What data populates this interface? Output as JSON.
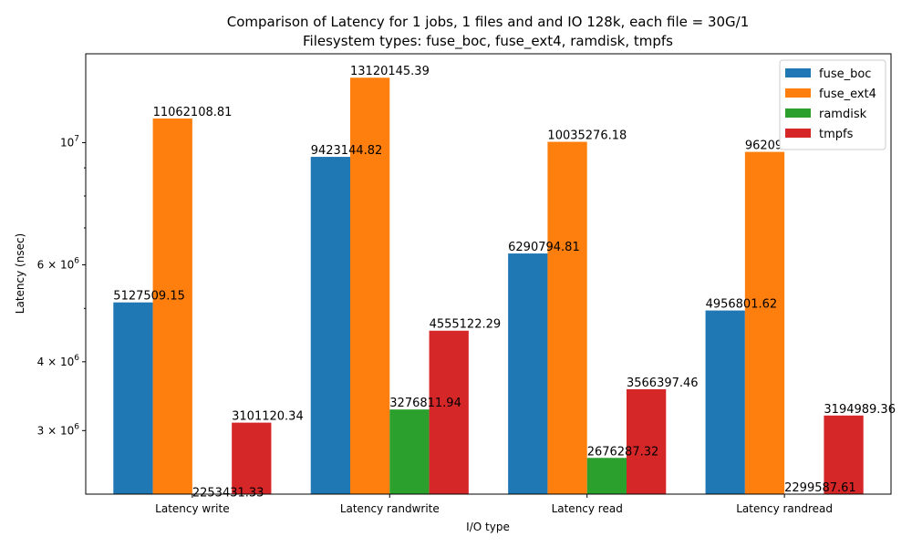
{
  "chart_data": {
    "type": "bar",
    "title": "Comparison of Latency for 1 jobs, 1 files and  and IO 128k, each file = 30G/1",
    "subtitle": "Filesystem types: fuse_boc, fuse_ext4, ramdisk, tmpfs",
    "xlabel": "I/O type",
    "ylabel": "Latency (nsec)",
    "yscale": "log",
    "ylim": [
      2300000,
      14500000
    ],
    "grid": false,
    "legend_position": "top-right",
    "categories": [
      "Latency write",
      "Latency randwrite",
      "Latency read",
      "Latency randread"
    ],
    "series": [
      {
        "name": "fuse_boc",
        "color": "#1f77b4",
        "values": [
          5127509.15,
          9423144.82,
          6290794.81,
          4956801.62
        ],
        "labels": [
          "5127509.15",
          "9423144.82",
          "6290794.81",
          "4956801.62"
        ]
      },
      {
        "name": "fuse_ext4",
        "color": "#ff7f0e",
        "values": [
          11062108.81,
          13120145.39,
          10035276.18,
          9620900.57
        ],
        "labels": [
          "11062108.81",
          "13120145.39",
          "10035276.18",
          "9620900.57"
        ]
      },
      {
        "name": "ramdisk",
        "color": "#2ca02c",
        "values": [
          2253431.33,
          3276811.94,
          2676287.32,
          2299587.61
        ],
        "labels": [
          "2253431.33",
          "3276811.94",
          "2676287.32",
          "2299587.61"
        ]
      },
      {
        "name": "tmpfs",
        "color": "#d62728",
        "values": [
          3101120.34,
          4555122.29,
          3566397.46,
          3194989.36
        ],
        "labels": [
          "3101120.34",
          "4555122.29",
          "3566397.46",
          "3194989.36"
        ]
      }
    ],
    "y_ticks": [
      {
        "value": 3000000,
        "mantissa": "3",
        "exponent": "6"
      },
      {
        "value": 4000000,
        "mantissa": "4",
        "exponent": "6"
      },
      {
        "value": 6000000,
        "mantissa": "6",
        "exponent": "6"
      },
      {
        "value": 10000000,
        "mantissa": "10",
        "exponent": "7"
      }
    ],
    "y_minor_ticks": [
      5000000,
      7000000,
      8000000,
      9000000
    ]
  }
}
